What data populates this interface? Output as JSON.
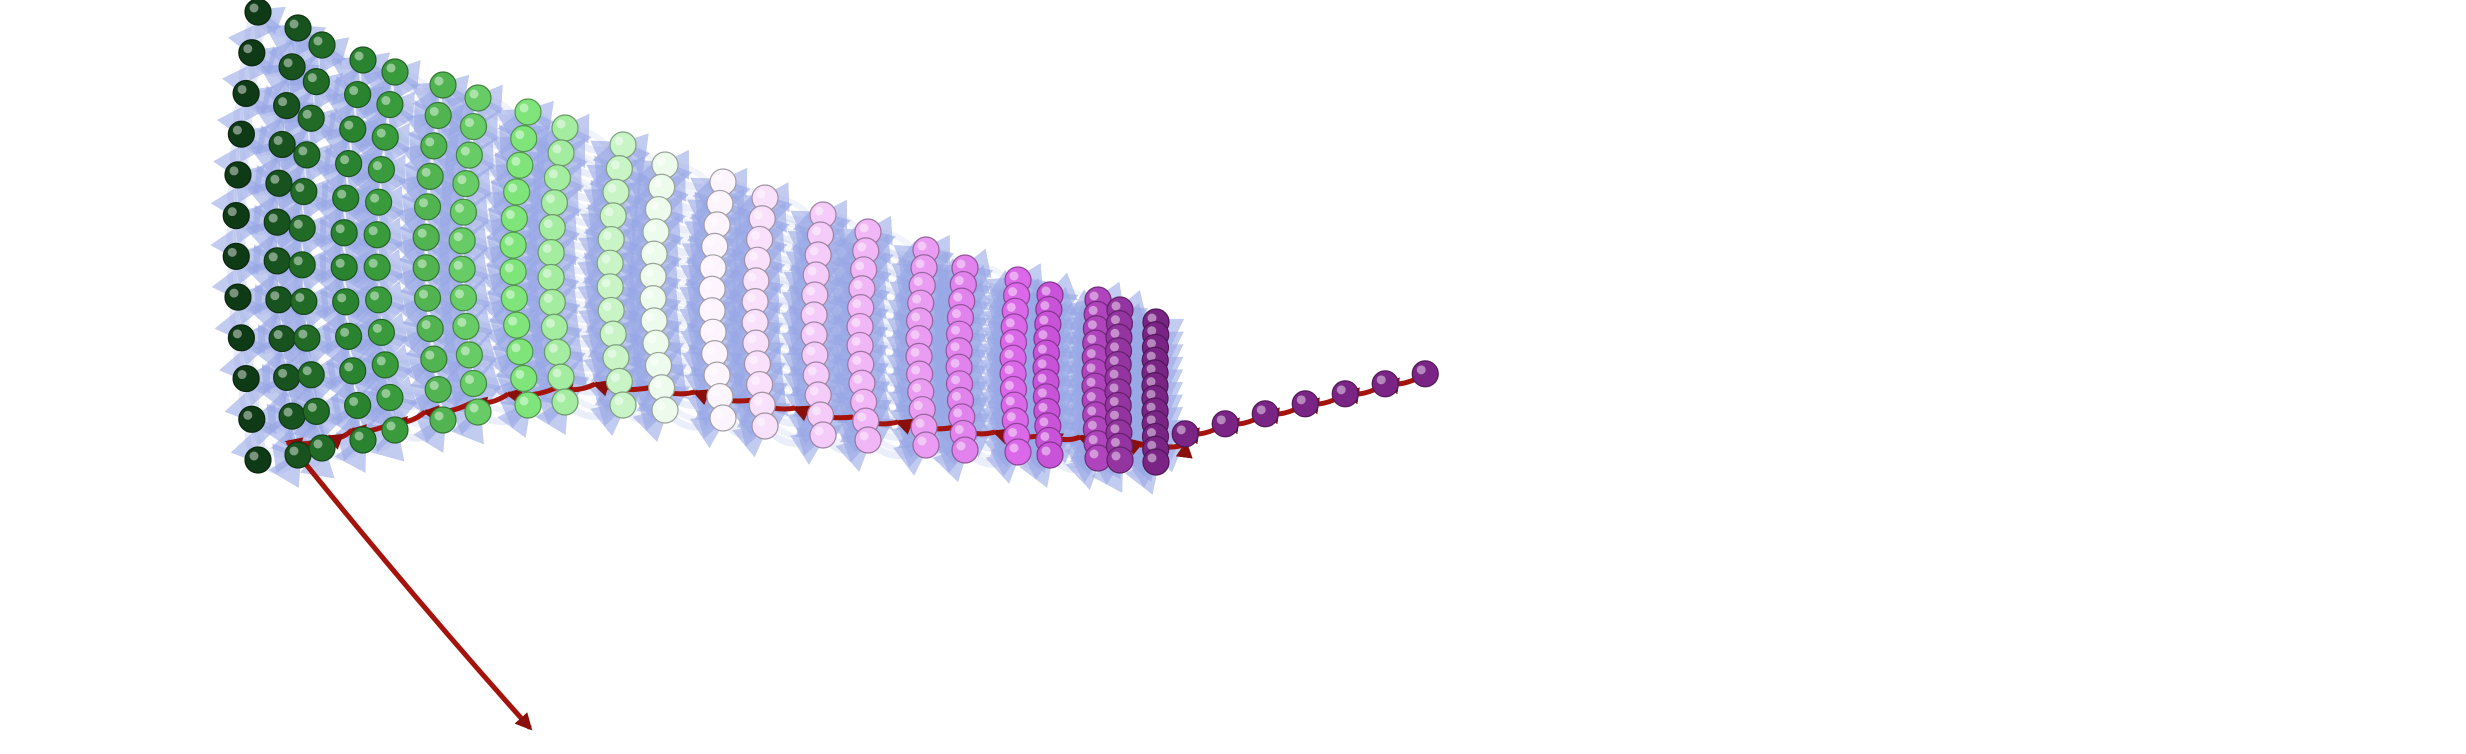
{
  "figure": {
    "type": "3d-network-graph",
    "columns": 22,
    "tail_nodes": 7,
    "colors": {
      "background": "#ffffff",
      "edge": "#7f93de",
      "path": "#a5140c",
      "gradient_stops": [
        "#0f3a16",
        "#2f8f33",
        "#7fe57a",
        "#ffffff",
        "#f0b6f6",
        "#d65be6",
        "#7a2585"
      ]
    }
  }
}
